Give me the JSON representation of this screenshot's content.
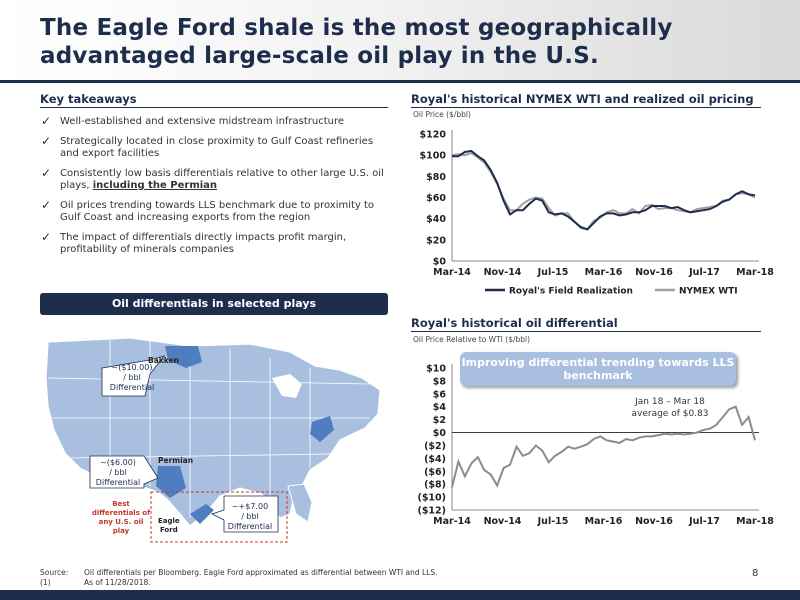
{
  "title": "The Eagle Ford shale is the most geographically advantaged large-scale oil play in the U.S.",
  "takeaways": {
    "heading": "Key takeaways",
    "items": [
      {
        "text": "Well-established and extensive midstream infrastructure"
      },
      {
        "text": "Strategically located in close proximity to Gulf Coast refineries and export facilities"
      },
      {
        "text": "Consistently low basis differentials relative to other large U.S. oil plays, ",
        "emph": "including the Permian"
      },
      {
        "text": "Oil prices trending towards LLS benchmark due to proximity to Gulf Coast and increasing exports from the region"
      },
      {
        "text": "The impact of differentials directly impacts profit margin, profitability of minerals companies"
      }
    ]
  },
  "map_section": {
    "heading": "Oil differentials in selected plays",
    "bakken": {
      "name": "Bakken",
      "diff": "~($10.00)",
      "unit": "/ bbl",
      "label": "Differential"
    },
    "permian": {
      "name": "Permian",
      "diff": "~($6.00)",
      "unit": "/ bbl",
      "label": "Differential"
    },
    "eagle_ford": {
      "name_line1": "Eagle",
      "name_line2": "Ford",
      "diff": "~+$7.00",
      "unit": "/ bbl",
      "label": "Differential"
    },
    "best_note": {
      "line1": "Best",
      "line2": "differentials of",
      "line3": "any U.S. oil",
      "line4": "play"
    },
    "colors": {
      "map": "#a9bfe0",
      "highlight": "#4f7dbf",
      "note": "#c0392b"
    }
  },
  "chart_data": [
    {
      "type": "line",
      "title": "Royal's historical NYMEX WTI and realized oil pricing",
      "ylabel": "Oil Price ($/bbl)",
      "x_ticks": [
        "Mar-14",
        "Nov-14",
        "Jul-15",
        "Mar-16",
        "Nov-16",
        "Jul-17",
        "Mar-18"
      ],
      "y_ticks": [
        "$0",
        "$20",
        "$40",
        "$60",
        "$80",
        "$100",
        "$120"
      ],
      "ylim": [
        0,
        120
      ],
      "legend": "bottom",
      "series": [
        {
          "name": "Royal's Field Realization",
          "color": "#1f2d4d",
          "values": [
            99,
            99,
            103,
            104,
            99,
            95,
            86,
            74,
            57,
            44,
            48,
            48,
            54,
            59,
            57,
            46,
            44,
            45,
            42,
            37,
            32,
            30,
            36,
            42,
            45,
            45,
            43,
            44,
            46,
            46,
            48,
            52,
            52,
            52,
            50,
            51,
            48,
            46,
            47,
            48,
            49,
            52,
            56,
            58,
            63,
            66,
            63,
            62
          ]
        },
        {
          "name": "NYMEX WTI",
          "color": "#a0a0a0",
          "values": [
            100,
            101,
            100,
            102,
            98,
            93,
            84,
            73,
            59,
            48,
            48,
            54,
            58,
            60,
            59,
            50,
            43,
            45,
            45,
            37,
            31,
            30,
            38,
            41,
            46,
            48,
            45,
            45,
            49,
            45,
            52,
            53,
            49,
            50,
            50,
            48,
            47,
            46,
            49,
            50,
            51,
            52,
            57,
            58,
            63,
            64,
            63,
            60
          ]
        }
      ]
    },
    {
      "type": "line",
      "title": "Royal's historical oil differential",
      "ylabel": "Oil Price Relative to WTI ($/bbl)",
      "x_ticks": [
        "Mar-14",
        "Nov-14",
        "Jul-15",
        "Mar-16",
        "Nov-16",
        "Jul-17",
        "Mar-18"
      ],
      "y_ticks": [
        "$10",
        "$8",
        "$6",
        "$4",
        "$2",
        "$0",
        "($2)",
        "($4)",
        "($6)",
        "($8)",
        "($10)",
        "($12)"
      ],
      "ylim": [
        -12,
        10
      ],
      "series": [
        {
          "name": "Differential",
          "color": "#8c8c8c",
          "values": [
            -8.5,
            -4.5,
            -6.8,
            -4.8,
            -3.8,
            -5.8,
            -6.5,
            -8.2,
            -5.5,
            -5.0,
            -2.2,
            -3.6,
            -3.2,
            -2.0,
            -2.8,
            -4.6,
            -3.6,
            -3.0,
            -2.2,
            -2.5,
            -2.2,
            -1.8,
            -1.0,
            -0.6,
            -1.2,
            -1.4,
            -1.6,
            -1.0,
            -1.2,
            -0.8,
            -0.6,
            -0.6,
            -0.4,
            -0.2,
            -0.3,
            -0.2,
            -0.3,
            -0.2,
            0.0,
            0.4,
            0.6,
            1.2,
            2.4,
            3.6,
            4.0,
            1.2,
            2.4,
            -1.2
          ]
        }
      ],
      "callout": "Improving differential trending towards LLS benchmark",
      "annotation_line1": "Jan 18 – Mar 18",
      "annotation_line2": "average of $0.83"
    }
  ],
  "footer": {
    "source_label": "Source:",
    "source_text": "Oil differentials per Bloomberg. Eagle Ford approximated as differential between WTI and LLS.",
    "note_label": "(1)",
    "note_text": "As of 11/28/2018."
  },
  "page_number": "8"
}
